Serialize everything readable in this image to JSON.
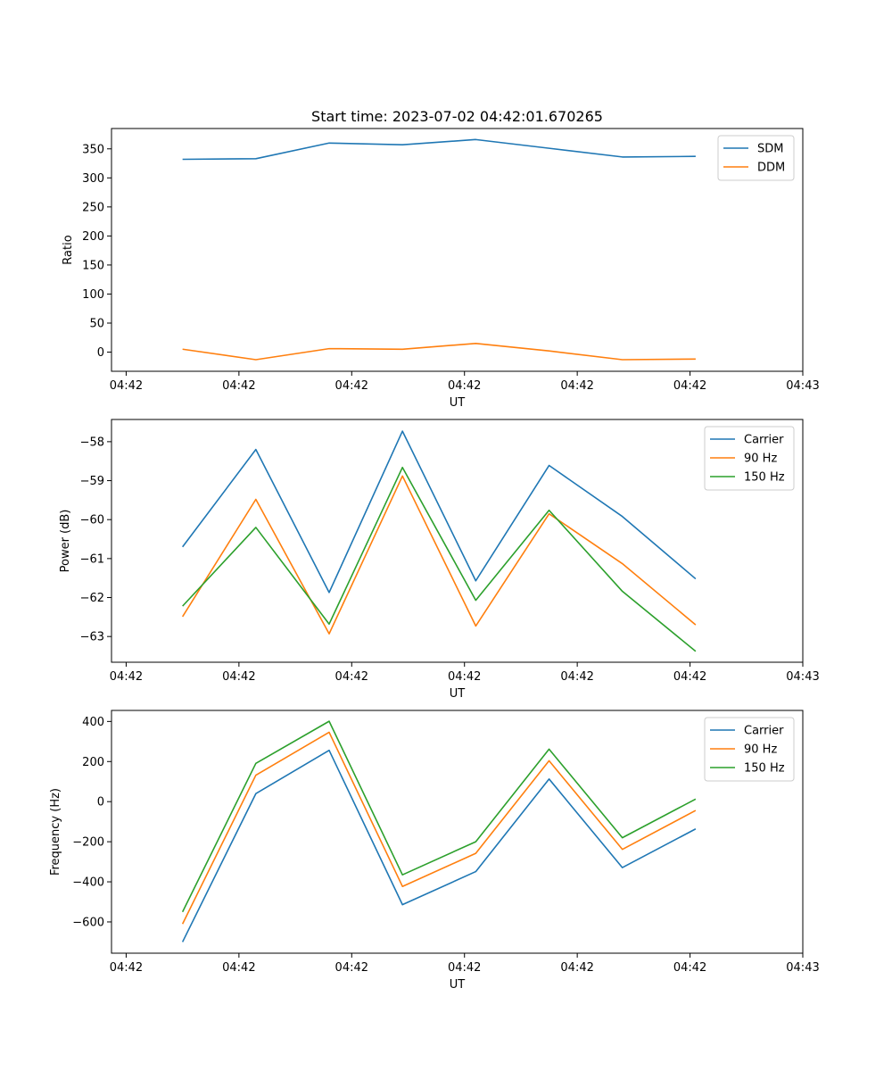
{
  "title": "Start time: 2023-07-02 04:42:01.670265",
  "colors": {
    "blue": "#1f77b4",
    "orange": "#ff7f0e",
    "green": "#2ca02c"
  },
  "chart_data": [
    {
      "type": "line",
      "title": "Start time: 2023-07-02 04:42:01.670265",
      "xlabel": "UT",
      "ylabel": "Ratio",
      "x_tick_positions": [
        0,
        1,
        2,
        3,
        4,
        5,
        6
      ],
      "x_tick_labels": [
        "04:42",
        "04:42",
        "04:42",
        "04:42",
        "04:42",
        "04:42",
        "04:43"
      ],
      "xlim": [
        -0.13,
        6.0
      ],
      "ylim": [
        -33,
        385
      ],
      "y_ticks": [
        0,
        50,
        100,
        150,
        200,
        250,
        300,
        350
      ],
      "x": [
        0.5,
        1.15,
        1.8,
        2.45,
        3.1,
        3.75,
        4.4,
        5.05
      ],
      "series": [
        {
          "name": "SDM",
          "color": "#1f77b4",
          "values": [
            332,
            333,
            360,
            357,
            366,
            351,
            336,
            337
          ]
        },
        {
          "name": "DDM",
          "color": "#ff7f0e",
          "values": [
            5,
            -13,
            6,
            5,
            15,
            2,
            -13,
            -12
          ]
        }
      ],
      "legend": "top-right"
    },
    {
      "type": "line",
      "xlabel": "UT",
      "ylabel": "Power (dB)",
      "x_tick_positions": [
        0,
        1,
        2,
        3,
        4,
        5,
        6
      ],
      "x_tick_labels": [
        "04:42",
        "04:42",
        "04:42",
        "04:42",
        "04:42",
        "04:42",
        "04:43"
      ],
      "xlim": [
        -0.13,
        6.0
      ],
      "ylim": [
        -63.66,
        -57.43
      ],
      "y_ticks": [
        -63,
        -62,
        -61,
        -60,
        -59,
        -58
      ],
      "y_tick_labels": [
        "−63",
        "−62",
        "−61",
        "−60",
        "−59",
        "−58"
      ],
      "x": [
        0.5,
        1.15,
        1.8,
        2.45,
        3.1,
        3.75,
        4.4,
        5.05
      ],
      "series": [
        {
          "name": "Carrier",
          "color": "#1f77b4",
          "values": [
            -60.7,
            -58.2,
            -61.87,
            -57.73,
            -61.57,
            -58.61,
            -59.92,
            -61.52
          ]
        },
        {
          "name": "90 Hz",
          "color": "#ff7f0e",
          "values": [
            -62.49,
            -59.48,
            -62.93,
            -58.88,
            -62.73,
            -59.85,
            -61.13,
            -62.7
          ]
        },
        {
          "name": "150 Hz",
          "color": "#2ca02c",
          "values": [
            -62.22,
            -60.2,
            -62.68,
            -58.66,
            -62.07,
            -59.76,
            -61.84,
            -63.38
          ]
        }
      ],
      "legend": "top-right"
    },
    {
      "type": "line",
      "xlabel": "UT",
      "ylabel": "Frequency (Hz)",
      "x_tick_positions": [
        0,
        1,
        2,
        3,
        4,
        5,
        6
      ],
      "x_tick_labels": [
        "04:42",
        "04:42",
        "04:42",
        "04:42",
        "04:42",
        "04:42",
        "04:43"
      ],
      "xlim": [
        -0.13,
        6.0
      ],
      "ylim": [
        -756,
        455
      ],
      "y_ticks": [
        -600,
        -400,
        -200,
        0,
        200,
        400
      ],
      "y_tick_labels": [
        "−600",
        "−400",
        "−200",
        "0",
        "200",
        "400"
      ],
      "x": [
        0.5,
        1.15,
        1.8,
        2.45,
        3.1,
        3.75,
        4.4,
        5.05
      ],
      "series": [
        {
          "name": "Carrier",
          "color": "#1f77b4",
          "values": [
            -700,
            40,
            256,
            -514,
            -349,
            113,
            -329,
            -136
          ]
        },
        {
          "name": "90 Hz",
          "color": "#ff7f0e",
          "values": [
            -610,
            132,
            346,
            -423,
            -258,
            204,
            -238,
            -44
          ]
        },
        {
          "name": "150 Hz",
          "color": "#2ca02c",
          "values": [
            -550,
            191,
            401,
            -365,
            -200,
            262,
            -180,
            13
          ]
        }
      ],
      "legend": "top-right"
    }
  ]
}
